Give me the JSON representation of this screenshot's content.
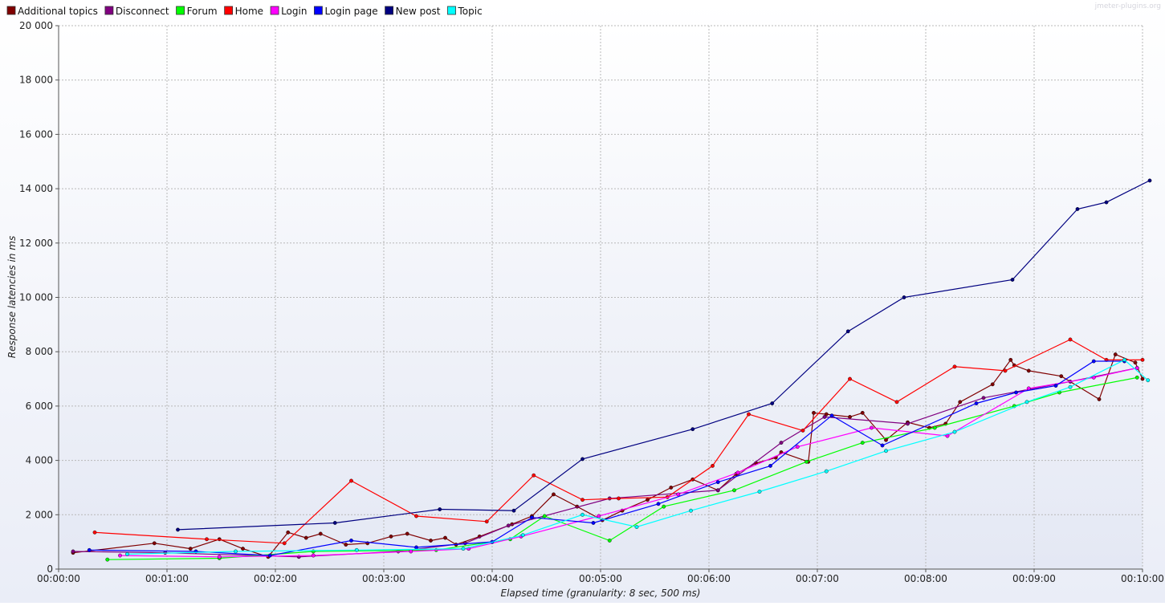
{
  "watermark": "jmeter-plugins.org",
  "chart_data": {
    "type": "line",
    "xlabel": "Elapsed time (granularity: 8 sec, 500 ms)",
    "ylabel": "Response latencies in ms",
    "x_unit": "seconds",
    "xlim": [
      0,
      600
    ],
    "ylim": [
      0,
      20000
    ],
    "x_ticks": [
      0,
      60,
      120,
      180,
      240,
      300,
      360,
      420,
      480,
      540,
      600
    ],
    "x_tick_labels": [
      "00:00:00",
      "00:01:00",
      "00:02:00",
      "00:03:00",
      "00:04:00",
      "00:05:00",
      "00:06:00",
      "00:07:00",
      "00:08:00",
      "00:09:00",
      "00:10:00"
    ],
    "y_ticks": [
      0,
      2000,
      4000,
      6000,
      8000,
      10000,
      12000,
      14000,
      16000,
      18000,
      20000
    ],
    "y_tick_labels": [
      "0",
      "2 000",
      "4 000",
      "6 000",
      "8 000",
      "10 000",
      "12 000",
      "14 000",
      "16 000",
      "18 000",
      "20 000"
    ],
    "grid": true,
    "legend_position": "top-left",
    "series": [
      {
        "name": "Additional topics",
        "color": "#800000",
        "x": [
          8,
          53,
          73,
          89,
          102,
          116,
          127,
          137,
          145,
          159,
          171,
          184,
          193,
          206,
          214,
          220,
          233,
          251,
          262,
          274,
          287,
          301,
          312,
          326,
          339,
          351,
          365,
          375,
          386,
          397,
          400,
          415,
          418,
          425,
          438,
          445,
          458,
          470,
          482,
          491,
          499,
          517,
          527,
          529,
          537,
          555,
          576,
          585,
          596,
          600
        ],
        "y": [
          600,
          950,
          750,
          1100,
          750,
          450,
          1350,
          1150,
          1300,
          900,
          950,
          1200,
          1300,
          1050,
          1150,
          900,
          1200,
          1650,
          1950,
          2750,
          2300,
          1800,
          2150,
          2550,
          3000,
          3300,
          2900,
          3500,
          3900,
          4100,
          4300,
          3950,
          5750,
          5700,
          5600,
          5750,
          4750,
          5400,
          5200,
          5350,
          6150,
          6800,
          7700,
          7500,
          7300,
          7100,
          6250,
          7900,
          7600,
          7000
        ]
      },
      {
        "name": "Disconnect",
        "color": "#800080",
        "x": [
          8,
          59,
          133,
          188,
          225,
          249,
          305,
          365,
          400,
          424,
          470,
          512,
          560,
          597
        ],
        "y": [
          650,
          600,
          450,
          650,
          950,
          1600,
          2600,
          2900,
          4650,
          5600,
          5350,
          6300,
          6900,
          7400
        ]
      },
      {
        "name": "Forum",
        "color": "#00ff00",
        "x": [
          27,
          89,
          141,
          209,
          250,
          269,
          305,
          335,
          374,
          414,
          445,
          485,
          529,
          554,
          597
        ],
        "y": [
          350,
          400,
          650,
          700,
          1100,
          1950,
          1050,
          2300,
          2900,
          3950,
          4650,
          5200,
          6000,
          6500,
          7050
        ]
      },
      {
        "name": "Home",
        "color": "#ff0000",
        "x": [
          20,
          82,
          125,
          162,
          198,
          237,
          263,
          290,
          310,
          337,
          362,
          382,
          412,
          438,
          464,
          496,
          524,
          560,
          580,
          600
        ],
        "y": [
          1350,
          1100,
          950,
          3250,
          1950,
          1750,
          3450,
          2550,
          2600,
          2650,
          3800,
          5700,
          5100,
          7000,
          6150,
          7450,
          7300,
          8450,
          7700,
          7700
        ]
      },
      {
        "name": "Login",
        "color": "#ff00ff",
        "x": [
          34,
          89,
          141,
          195,
          227,
          256,
          299,
          343,
          376,
          409,
          450,
          492,
          537,
          573,
          597
        ],
        "y": [
          500,
          450,
          500,
          650,
          750,
          1200,
          1950,
          2750,
          3550,
          4500,
          5200,
          4900,
          6650,
          7050,
          7400
        ]
      },
      {
        "name": "Login page",
        "color": "#0000ff",
        "x": [
          17,
          76,
          117,
          162,
          198,
          240,
          262,
          296,
          332,
          365,
          394,
          428,
          456,
          508,
          530,
          552,
          573,
          590
        ],
        "y": [
          700,
          650,
          500,
          1050,
          800,
          1000,
          1900,
          1700,
          2400,
          3200,
          3800,
          5650,
          4550,
          6100,
          6500,
          6750,
          7650,
          7650
        ]
      },
      {
        "name": "New post",
        "color": "#000080",
        "x": [
          66,
          153,
          211,
          252,
          290,
          351,
          395,
          437,
          468,
          528,
          564,
          580,
          604
        ],
        "y": [
          1450,
          1700,
          2200,
          2150,
          4050,
          5150,
          6100,
          8750,
          10000,
          10650,
          13250,
          13500,
          14300
        ]
      },
      {
        "name": "Topic",
        "color": "#00ffff",
        "x": [
          38,
          98,
          165,
          224,
          257,
          290,
          320,
          350,
          388,
          425,
          458,
          496,
          536,
          560,
          590,
          603
        ],
        "y": [
          550,
          650,
          700,
          750,
          1250,
          2000,
          1550,
          2150,
          2850,
          3600,
          4350,
          5050,
          6150,
          6700,
          7700,
          6950
        ]
      }
    ]
  }
}
